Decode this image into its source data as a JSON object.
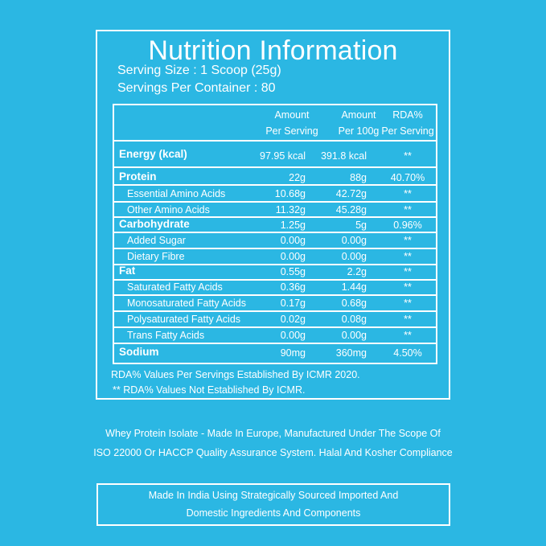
{
  "title": "Nutrition Information",
  "serving_size": "Serving Size : 1 Scoop (25g)",
  "servings_per_container": "Servings Per Container : 80",
  "headers": {
    "amount_ps_1": "Amount",
    "amount_ps_2": "Per Serving",
    "amount_100_1": "Amount",
    "amount_100_2": "Per 100g",
    "rda_1": "RDA%",
    "rda_2": "Per Serving"
  },
  "rows": [
    {
      "label": "Energy (kcal)",
      "ps": "97.95 kcal",
      "p100": "391.8 kcal",
      "rda": "**"
    },
    {
      "label": "Protein",
      "ps": "22g",
      "p100": "88g",
      "rda": "40.70%"
    },
    {
      "label": "Essential Amino Acids",
      "ps": "10.68g",
      "p100": "42.72g",
      "rda": "**"
    },
    {
      "label": "Other Amino Acids",
      "ps": "11.32g",
      "p100": "45.28g",
      "rda": "**"
    },
    {
      "label": "Carbohydrate",
      "ps": "1.25g",
      "p100": "5g",
      "rda": "0.96%"
    },
    {
      "label": "Added Sugar",
      "ps": "0.00g",
      "p100": "0.00g",
      "rda": "**"
    },
    {
      "label": "Dietary Fibre",
      "ps": "0.00g",
      "p100": "0.00g",
      "rda": "**"
    },
    {
      "label": "Fat",
      "ps": "0.55g",
      "p100": "2.2g",
      "rda": "**"
    },
    {
      "label": "Saturated Fatty Acids",
      "ps": "0.36g",
      "p100": "1.44g",
      "rda": "**"
    },
    {
      "label": "Monosaturated Fatty Acids",
      "ps": "0.17g",
      "p100": "0.68g",
      "rda": "**"
    },
    {
      "label": "Polysaturated Fatty Acids",
      "ps": "0.02g",
      "p100": "0.08g",
      "rda": "**"
    },
    {
      "label": "Trans Fatty Acids",
      "ps": "0.00g",
      "p100": "0.00g",
      "rda": "**"
    },
    {
      "label": "Sodium",
      "ps": "90mg",
      "p100": "360mg",
      "rda": "4.50%"
    }
  ],
  "notes": {
    "note1": "RDA%  Values Per Servings Established By ICMR 2020.",
    "note2": "** RDA%  Values Not Established By ICMR."
  },
  "footer": {
    "line1": "Whey Protein Isolate - Made In Europe, Manufactured Under The Scope Of",
    "line2": "ISO 22000 Or HACCP Quality Assurance System. Halal And Kosher Compliance"
  },
  "made_in": {
    "line1": "Made In India Using Strategically Sourced Imported And",
    "line2": "Domestic Ingredients And Components"
  },
  "colors": {
    "background": "#2bb7e3",
    "foreground": "#ffffff"
  }
}
